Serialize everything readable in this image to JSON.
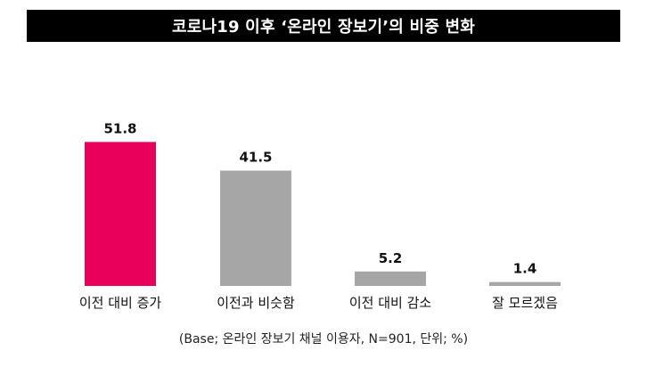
{
  "title": "코로나19 이후 ‘온라인 장보기’의 비중 변화",
  "footnote": "(Base; 온라인 장보기 채널 이용자, N=901, 단위; %)",
  "colors": {
    "highlight": "#E8005A",
    "default": "#A6A6A6",
    "title_background": "#000000",
    "title_text": "#FFFFFF"
  },
  "chart_data": {
    "type": "bar",
    "categories": [
      "이전 대비 증가",
      "이전과 비슷함",
      "이전 대비 감소",
      "잘 모르겠음"
    ],
    "values": [
      51.8,
      41.5,
      5.2,
      1.4
    ],
    "value_labels": [
      "51.8",
      "41.5",
      "5.2",
      "1.4"
    ],
    "highlight_index": 0,
    "unit": "%",
    "ylim": [
      0,
      60
    ],
    "grid": false,
    "legend": "none"
  }
}
